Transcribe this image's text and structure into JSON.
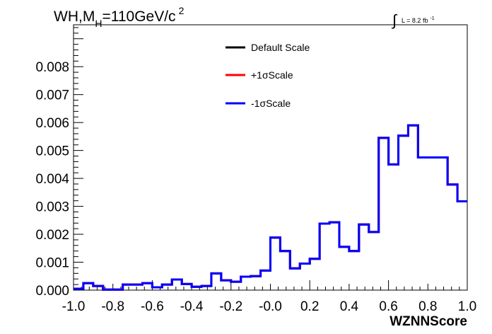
{
  "chart_data": {
    "type": "line",
    "title_parts": {
      "a": "WH,M",
      "sub": "H",
      "b": "=110GeV/c",
      "sup": "2"
    },
    "luminosity": {
      "integral": "∫",
      "text": "L = 8.2 fb",
      "sup": "-1"
    },
    "xlabel": "WZNNScore",
    "ylabel": "",
    "xlim": [
      -1.0,
      1.0
    ],
    "ylim": [
      0,
      0.0095
    ],
    "x_ticks": [
      "-1.0",
      "-0.8",
      "-0.6",
      "-0.4",
      "-0.2",
      "-0.0",
      "0.2",
      "0.4",
      "0.6",
      "0.8",
      "1.0"
    ],
    "y_ticks": [
      "0.000",
      "0.001",
      "0.002",
      "0.003",
      "0.004",
      "0.005",
      "0.006",
      "0.007",
      "0.008"
    ],
    "bin_edges": [
      -1.0,
      -0.95,
      -0.9,
      -0.85,
      -0.8,
      -0.75,
      -0.7,
      -0.65,
      -0.6,
      -0.55,
      -0.5,
      -0.45,
      -0.4,
      -0.35,
      -0.3,
      -0.25,
      -0.2,
      -0.15,
      -0.1,
      -0.05,
      0.0,
      0.05,
      0.1,
      0.15,
      0.2,
      0.25,
      0.3,
      0.35,
      0.4,
      0.45,
      0.5,
      0.55,
      0.6,
      0.65,
      0.7,
      0.75,
      0.8,
      0.85,
      0.9,
      0.95,
      1.0
    ],
    "legend": [
      {
        "name": "Default Scale",
        "color": "#000000"
      },
      {
        "name": "+1σScale",
        "color": "#ff0000"
      },
      {
        "name": "-1σScale",
        "color": "#0000ff"
      }
    ],
    "series": [
      {
        "name": "Default Scale",
        "color": "#000000",
        "values": [
          5e-05,
          0.00025,
          0.00015,
          2e-05,
          2e-05,
          0.0002,
          0.0002,
          0.00025,
          0.0001,
          0.0002,
          0.00038,
          0.00022,
          0.00012,
          0.00015,
          0.0006,
          0.00035,
          0.0003,
          0.00048,
          0.0005,
          0.0007,
          0.00188,
          0.0014,
          0.00078,
          0.00095,
          0.00112,
          0.00238,
          0.00243,
          0.00155,
          0.0014,
          0.00235,
          0.00208,
          0.00545,
          0.0045,
          0.00553,
          0.0059,
          0.00475,
          0.00475,
          0.00475,
          0.00378,
          0.00318
        ]
      },
      {
        "name": "+1σScale",
        "color": "#ff0000",
        "values": [
          5e-05,
          0.00025,
          0.00015,
          2e-05,
          2e-05,
          0.0002,
          0.0002,
          0.00025,
          0.0001,
          0.0002,
          0.00038,
          0.00022,
          0.00012,
          0.00015,
          0.0006,
          0.00035,
          0.0003,
          0.00048,
          0.0005,
          0.0007,
          0.00188,
          0.0014,
          0.00078,
          0.00095,
          0.00112,
          0.00238,
          0.00243,
          0.00155,
          0.0014,
          0.00235,
          0.00208,
          0.00545,
          0.0045,
          0.00553,
          0.0059,
          0.00475,
          0.00475,
          0.00475,
          0.00378,
          0.00318
        ]
      },
      {
        "name": "-1σScale",
        "color": "#0000ff",
        "values": [
          5e-05,
          0.00025,
          0.00015,
          2e-05,
          2e-05,
          0.0002,
          0.0002,
          0.00025,
          0.0001,
          0.0002,
          0.00038,
          0.00022,
          0.00012,
          0.00015,
          0.0006,
          0.00035,
          0.0003,
          0.00048,
          0.0005,
          0.0007,
          0.00188,
          0.0014,
          0.00078,
          0.00095,
          0.00112,
          0.00238,
          0.00243,
          0.00155,
          0.0014,
          0.00235,
          0.00208,
          0.00545,
          0.0045,
          0.00553,
          0.0059,
          0.00475,
          0.00475,
          0.00475,
          0.00378,
          0.00318
        ]
      }
    ],
    "grid": false,
    "legend_position": "top-center"
  }
}
